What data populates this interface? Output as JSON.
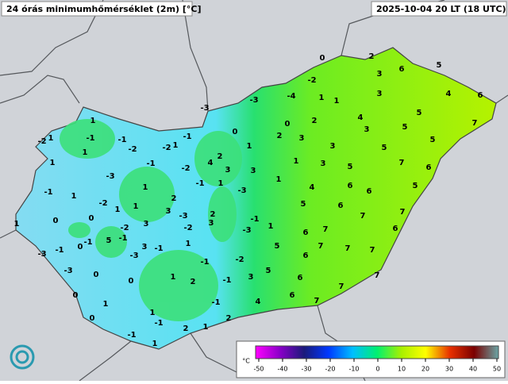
{
  "header": {
    "title": "24 órás minimumhőmérséklet (2m) [°C]",
    "timestamp": "2025-10-04 20 LT (18 UTC)"
  },
  "legend": {
    "unit": "°C",
    "ticks": [
      -50,
      -40,
      -30,
      -20,
      -10,
      0,
      10,
      20,
      30,
      40,
      50
    ],
    "colors": [
      "#ff00ff",
      "#8a00c8",
      "#1a1a7a",
      "#0038ff",
      "#00bfff",
      "#00f070",
      "#a8f000",
      "#ffff00",
      "#e83000",
      "#7a0000",
      "#6aa6a6"
    ]
  },
  "stations": [
    0,
    2,
    5,
    6,
    -2,
    3,
    4,
    6,
    3,
    1,
    1,
    -4,
    -3,
    -3,
    5,
    7,
    4,
    5,
    0,
    2,
    3,
    0,
    2,
    3,
    1,
    -2,
    1,
    -1,
    -1,
    -2,
    -1,
    -2,
    1,
    1,
    1,
    5,
    3,
    5,
    1,
    4,
    2,
    -1,
    -2,
    3,
    3,
    1,
    3,
    5,
    7,
    6,
    -3,
    1,
    -1,
    1,
    1,
    -1,
    1,
    -2,
    2,
    -3,
    4,
    6,
    6,
    5,
    1,
    1,
    3,
    2,
    -1,
    5,
    6,
    7,
    7,
    0,
    0,
    -3,
    3,
    1,
    -2,
    3,
    -2,
    -3,
    6,
    7,
    6,
    1,
    0,
    -1,
    5,
    -1,
    -1,
    3,
    5,
    7,
    7,
    -3,
    -1,
    -3,
    1,
    -1,
    -2,
    6,
    7,
    -3,
    0,
    0,
    1,
    2,
    -1,
    3,
    5,
    6,
    7,
    7,
    0,
    -1,
    4,
    6,
    7,
    0,
    1,
    1,
    -1,
    2,
    2,
    1,
    -1,
    1
  ]
}
